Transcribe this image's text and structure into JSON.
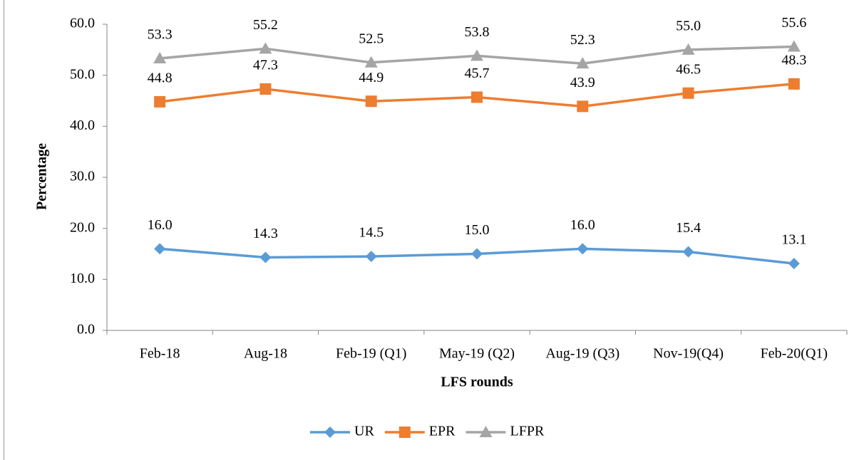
{
  "chart_data": {
    "type": "line",
    "x_label": "LFS rounds",
    "y_label": "Percentage",
    "categories": [
      "Feb-18",
      "Aug-18",
      "Feb-19 (Q1)",
      "May-19 (Q2)",
      "Aug-19 (Q3)",
      "Nov-19(Q4)",
      "Feb-20(Q1)"
    ],
    "series": [
      {
        "name": "UR",
        "color": "#5b9bd5",
        "marker": "diamond",
        "values": [
          16.0,
          14.3,
          14.5,
          15.0,
          16.0,
          15.4,
          13.1
        ],
        "value_labels": [
          "16.0",
          "14.3",
          "14.5",
          "15.0",
          "16.0",
          "15.4",
          "13.1"
        ]
      },
      {
        "name": "EPR",
        "color": "#ed7d31",
        "marker": "square",
        "values": [
          44.8,
          47.3,
          44.9,
          45.7,
          43.9,
          46.5,
          48.3
        ],
        "value_labels": [
          "44.8",
          "47.3",
          "44.9",
          "45.7",
          "43.9",
          "46.5",
          "48.3"
        ]
      },
      {
        "name": "LFPR",
        "color": "#a5a5a5",
        "marker": "triangle",
        "values": [
          53.3,
          55.2,
          52.5,
          53.8,
          52.3,
          55.0,
          55.6
        ],
        "value_labels": [
          "53.3",
          "55.2",
          "52.5",
          "53.8",
          "52.3",
          "55.0",
          "55.6"
        ]
      }
    ],
    "ylim": [
      0,
      60
    ],
    "yticks": [
      {
        "value": 0,
        "label": "0.0"
      },
      {
        "value": 10,
        "label": "10.0"
      },
      {
        "value": 20,
        "label": "20.0"
      },
      {
        "value": 30,
        "label": "30.0"
      },
      {
        "value": 40,
        "label": "40.0"
      },
      {
        "value": 50,
        "label": "50.0"
      },
      {
        "value": 60,
        "label": "60.0"
      }
    ],
    "grid": false,
    "legend": "bottom"
  }
}
